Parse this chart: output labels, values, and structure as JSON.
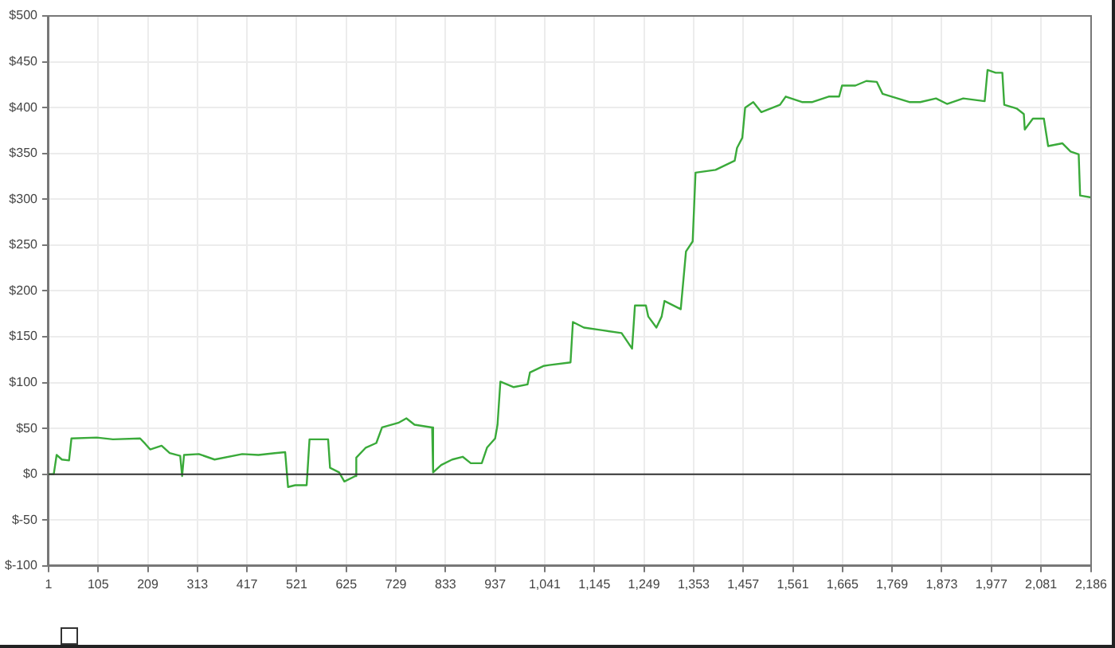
{
  "chart_data": {
    "type": "line",
    "x": [
      1,
      12,
      18,
      29,
      44,
      49,
      102,
      136,
      193,
      204,
      214,
      238,
      255,
      277,
      281,
      285,
      316,
      349,
      407,
      441,
      475,
      497,
      503,
      518,
      542,
      548,
      587,
      591,
      610,
      621,
      644,
      646,
      666,
      688,
      700,
      734,
      751,
      768,
      805,
      807,
      824,
      847,
      869,
      886,
      909,
      920,
      937,
      942,
      948,
      976,
      1005,
      1010,
      1038,
      1050,
      1095,
      1100,
      1123,
      1162,
      1202,
      1224,
      1230,
      1253,
      1258,
      1275,
      1286,
      1292,
      1326,
      1337,
      1351,
      1357,
      1399,
      1439,
      1444,
      1455,
      1461,
      1478,
      1495,
      1534,
      1546,
      1580,
      1602,
      1636,
      1658,
      1664,
      1692,
      1715,
      1737,
      1749,
      1805,
      1828,
      1861,
      1884,
      1918,
      1963,
      1969,
      1986,
      2000,
      2004,
      2030,
      2045,
      2047,
      2064,
      2087,
      2096,
      2126,
      2143,
      2160,
      2163,
      2186
    ],
    "series": [
      {
        "color": "#3aaa3a",
        "values": [
          0,
          0,
          21,
          16,
          15,
          39,
          40,
          38,
          39,
          33,
          27,
          31,
          23,
          20,
          -2,
          21,
          22,
          16,
          22,
          21,
          23,
          24,
          -14,
          -12,
          -12,
          38,
          38,
          7,
          2,
          -8,
          -2,
          18,
          29,
          34,
          51,
          56,
          61,
          54,
          51,
          2,
          10,
          16,
          19,
          12,
          12,
          29,
          39,
          54,
          101,
          95,
          98,
          111,
          118,
          119,
          122,
          166,
          160,
          157,
          154,
          137,
          184,
          184,
          172,
          160,
          172,
          189,
          180,
          243,
          254,
          329,
          332,
          342,
          356,
          367,
          400,
          406,
          395,
          403,
          412,
          406,
          406,
          412,
          412,
          424,
          424,
          429,
          428,
          415,
          406,
          406,
          410,
          404,
          410,
          407,
          441,
          438,
          438,
          403,
          399,
          393,
          376,
          388,
          388,
          358,
          361,
          352,
          349,
          304,
          302
        ]
      }
    ],
    "xlim": [
      1,
      2186
    ],
    "xticks": [
      1,
      105,
      209,
      313,
      417,
      521,
      625,
      729,
      833,
      937,
      {
        "value": 1041,
        "label": "1,041"
      },
      {
        "value": 1145,
        "label": "1,145"
      },
      {
        "value": 1249,
        "label": "1,249"
      },
      {
        "value": 1353,
        "label": "1,353"
      },
      {
        "value": 1457,
        "label": "1,457"
      },
      {
        "value": 1561,
        "label": "1,561"
      },
      {
        "value": 1665,
        "label": "1,665"
      },
      {
        "value": 1769,
        "label": "1,769"
      },
      {
        "value": 1873,
        "label": "1,873"
      },
      {
        "value": 1977,
        "label": "1,977"
      },
      {
        "value": 2081,
        "label": "2,081"
      },
      {
        "value": 2186,
        "label": "2,186"
      }
    ],
    "ylim": [
      -100,
      500
    ],
    "yticks": [
      {
        "value": -100,
        "label": "$-100"
      },
      {
        "value": -50,
        "label": "$-50"
      },
      {
        "value": 0,
        "label": "$0"
      },
      {
        "value": 50,
        "label": "$50"
      },
      {
        "value": 100,
        "label": "$100"
      },
      {
        "value": 150,
        "label": "$150"
      },
      {
        "value": 200,
        "label": "$200"
      },
      {
        "value": 250,
        "label": "$250"
      },
      {
        "value": 300,
        "label": "$300"
      },
      {
        "value": 350,
        "label": "$350"
      },
      {
        "value": 400,
        "label": "$400"
      },
      {
        "value": 450,
        "label": "$450"
      },
      {
        "value": 500,
        "label": "$500"
      }
    ],
    "ref_lines": [
      {
        "axis": "y",
        "value": 0,
        "color": "#333333"
      }
    ],
    "grid": true,
    "legend": false,
    "marker": "none",
    "line_style": "solid"
  }
}
